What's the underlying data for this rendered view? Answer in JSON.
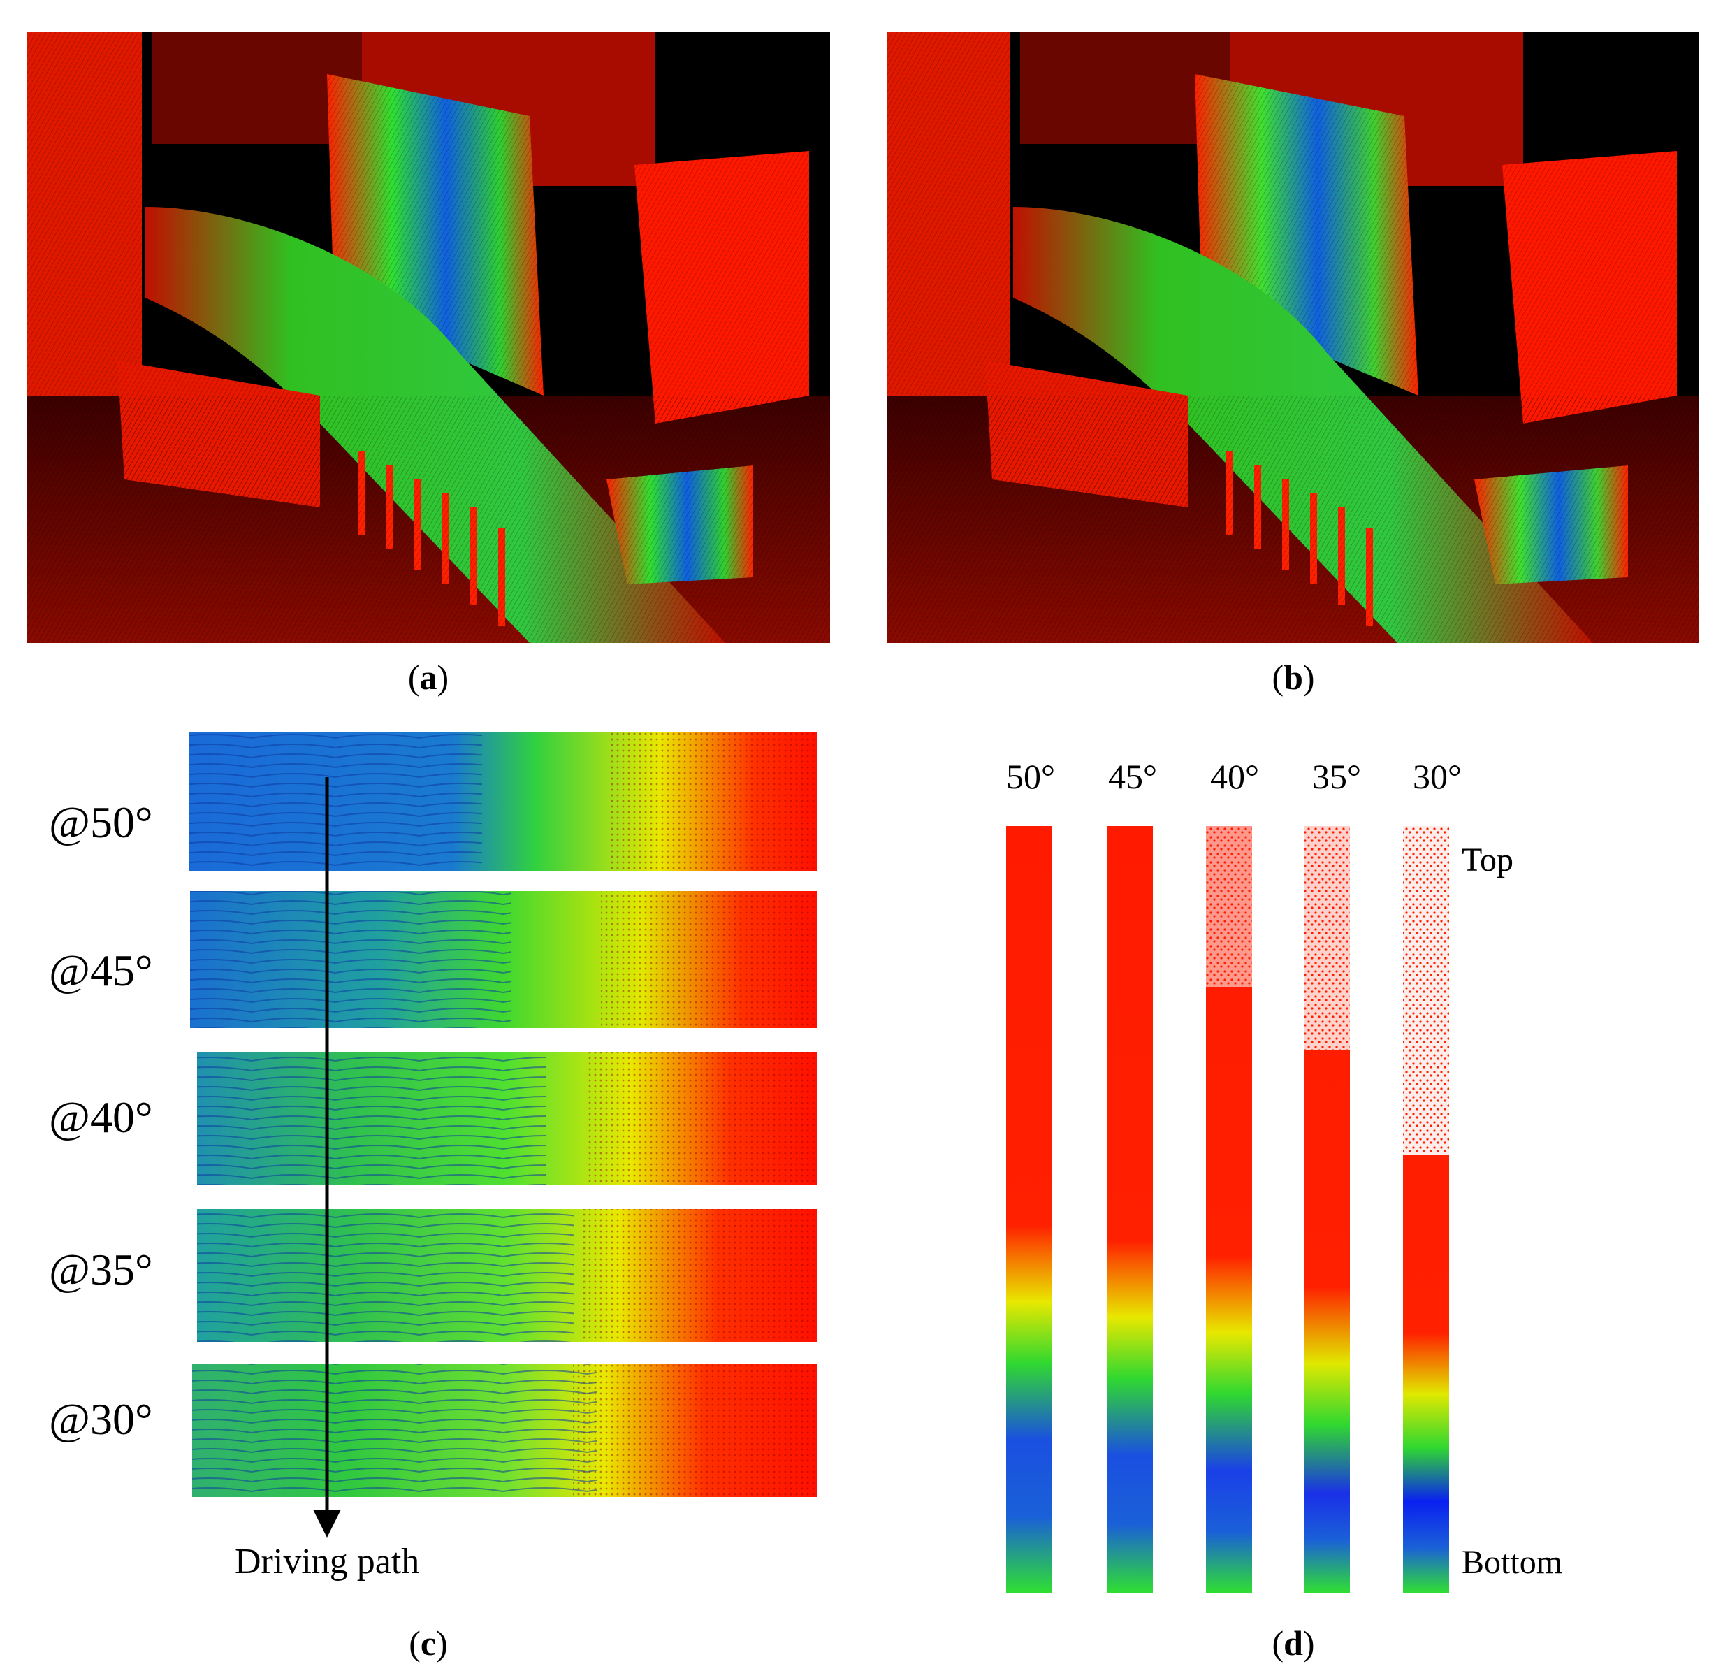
{
  "figure": {
    "panels": [
      {
        "id": "a",
        "label_prefix": "(",
        "label_letter": "a",
        "label_suffix": ")"
      },
      {
        "id": "b",
        "label_prefix": "(",
        "label_letter": "b",
        "label_suffix": ")"
      },
      {
        "id": "c",
        "label_prefix": "(",
        "label_letter": "c",
        "label_suffix": ")"
      },
      {
        "id": "d",
        "label_prefix": "(",
        "label_letter": "d",
        "label_suffix": ")"
      }
    ],
    "panel_c": {
      "strip_labels": [
        "@50°",
        "@45°",
        "@40°",
        "@35°",
        "@30°"
      ],
      "arrow_label": "Driving path"
    },
    "panel_d": {
      "column_labels": [
        "50°",
        "45°",
        "40°",
        "35°",
        "30°"
      ],
      "top_label": "Top",
      "bottom_label": "Bottom"
    }
  },
  "colors": {
    "red": "#ff1a00",
    "dark_red": "#5a0000",
    "green": "#28d81e",
    "yellow": "#e8f000",
    "blue": "#1040e8",
    "black": "#000000"
  }
}
